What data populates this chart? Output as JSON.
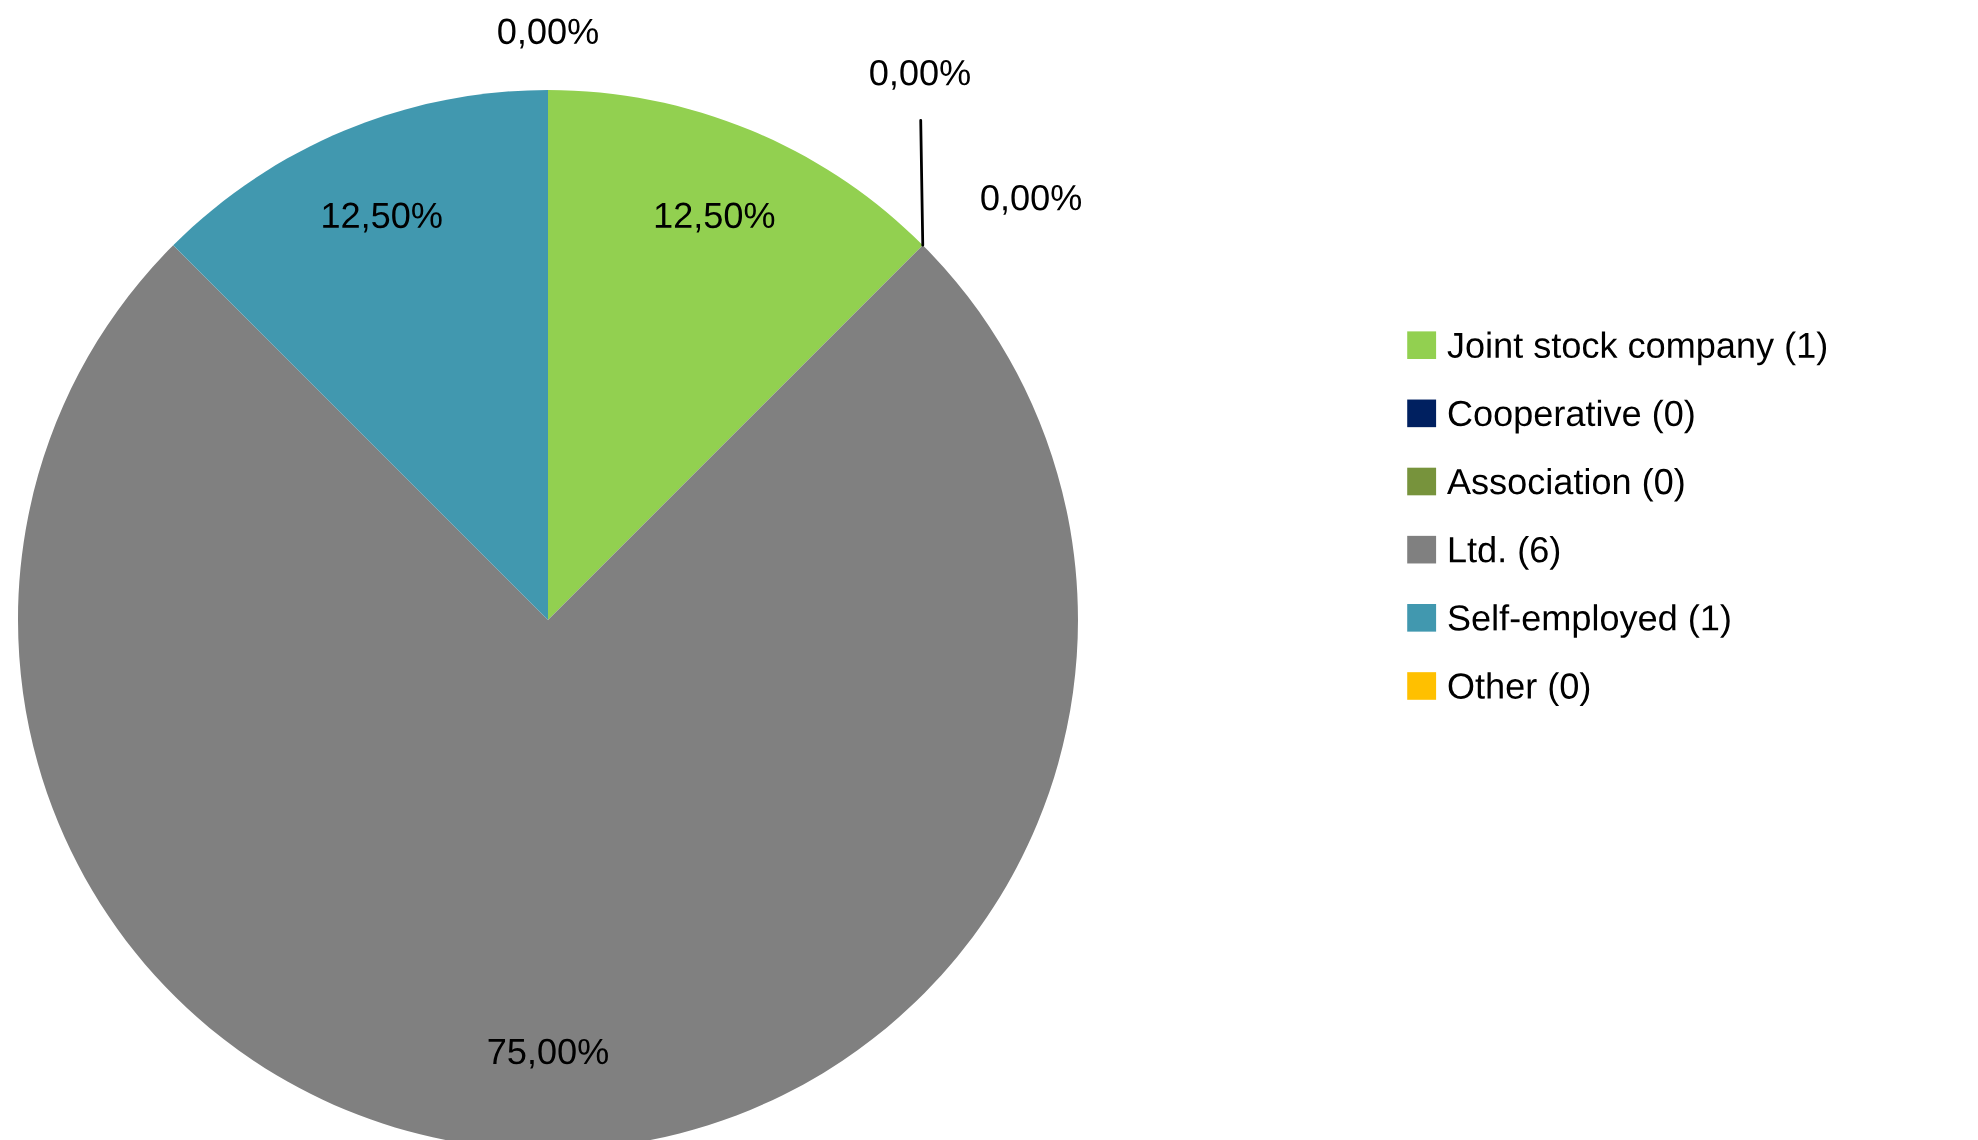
{
  "chart_data": {
    "type": "pie",
    "categories": [
      "Joint stock company (1)",
      "Cooperative (0)",
      "Association (0)",
      "Ltd. (6)",
      "Self-employed (1)",
      "Other (0)"
    ],
    "values": [
      12.5,
      0,
      0,
      75,
      12.5,
      0
    ],
    "colors": [
      "#92d050",
      "#002060",
      "#77933c",
      "#808080",
      "#4198af",
      "#ffc000"
    ],
    "value_labels": [
      "12,50%",
      "0,00%",
      "0,00%",
      "75,00%",
      "12,50%",
      "0,00%"
    ],
    "legend": "right"
  }
}
